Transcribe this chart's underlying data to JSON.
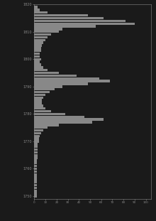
{
  "background_color": "#1a1a1a",
  "bar_color": "#888888",
  "fig_bg": "#1a1a1a",
  "spine_color": "#888888",
  "years": [
    1819,
    1818,
    1817,
    1816,
    1815,
    1814,
    1813,
    1812,
    1811,
    1810,
    1809,
    1808,
    1807,
    1806,
    1805,
    1804,
    1803,
    1802,
    1801,
    1800,
    1799,
    1798,
    1797,
    1796,
    1795,
    1794,
    1793,
    1792,
    1791,
    1790,
    1789,
    1788,
    1787,
    1786,
    1785,
    1784,
    1783,
    1782,
    1781,
    1780,
    1779,
    1778,
    1777,
    1776,
    1775,
    1774,
    1773,
    1772,
    1771,
    1770,
    1769,
    1768,
    1767,
    1766,
    1765,
    1764,
    1763,
    1762,
    1761,
    1760,
    1759,
    1758,
    1757,
    1756,
    1755,
    1754,
    1753,
    1752,
    1751,
    1750
  ],
  "values": [
    3,
    5,
    12,
    48,
    62,
    82,
    90,
    55,
    25,
    22,
    15,
    12,
    10,
    8,
    7,
    6,
    6,
    5,
    5,
    6,
    5,
    6,
    8,
    12,
    22,
    38,
    58,
    68,
    48,
    25,
    18,
    14,
    10,
    8,
    7,
    7,
    8,
    10,
    15,
    28,
    45,
    62,
    52,
    22,
    12,
    8,
    6,
    5,
    4,
    4,
    3,
    3,
    3,
    3,
    3,
    3,
    2,
    2,
    2,
    2,
    2,
    2,
    2,
    2,
    2,
    2,
    2,
    2,
    2,
    2
  ],
  "xlim": [
    0,
    105
  ],
  "ylim": [
    1749,
    1820
  ],
  "xtick_vals": [
    0,
    10,
    20,
    30,
    40,
    50,
    60,
    70,
    80,
    90,
    100
  ],
  "ytick_vals": [
    1750,
    1760,
    1770,
    1780,
    1790,
    1800,
    1810,
    1820
  ]
}
